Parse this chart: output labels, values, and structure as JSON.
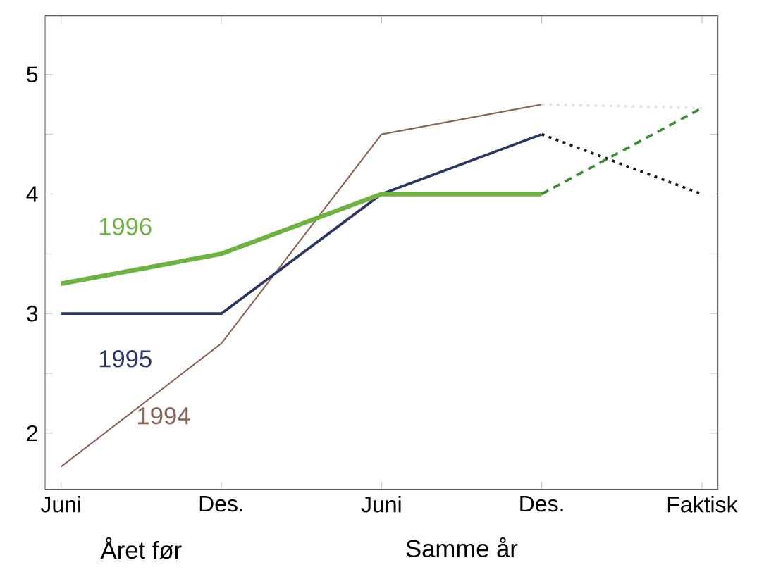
{
  "chart_data": {
    "type": "line",
    "categories": [
      "Juni",
      "Des.",
      "Juni",
      "Des.",
      "Faktisk"
    ],
    "series": [
      {
        "name": "1994",
        "color": "#8c6455",
        "values": [
          1.72,
          2.75,
          4.5,
          4.75,
          null
        ]
      },
      {
        "name": "1995",
        "color": "#2b3566",
        "values": [
          3,
          3,
          4,
          4.5,
          null
        ]
      },
      {
        "name": "1996",
        "color": "#6cb33f",
        "values": [
          3.25,
          3.5,
          4,
          4,
          null
        ]
      },
      {
        "color": "#e4e4e4",
        "values": [
          null,
          null,
          null,
          4.75,
          4.72
        ],
        "line_style": "dotted"
      },
      {
        "color": "#1a1a1a",
        "values": [
          null,
          null,
          null,
          4.5,
          4.0
        ],
        "line_style": "dotted"
      },
      {
        "color": "#3f8a3a",
        "values": [
          null,
          null,
          null,
          4,
          4.72
        ],
        "line_style": "dashed"
      }
    ],
    "ylim": [
      1.53,
      5.49
    ],
    "yticks": [
      2,
      {
        "value": 2.5,
        "label": null
      },
      3,
      {
        "value": 3.5,
        "label": null
      },
      4,
      {
        "value": 4.5,
        "label": null
      },
      5
    ],
    "annotations": [
      "Året før",
      "Samme år"
    ],
    "grid": false,
    "marker": "none",
    "line_style": "solid"
  }
}
